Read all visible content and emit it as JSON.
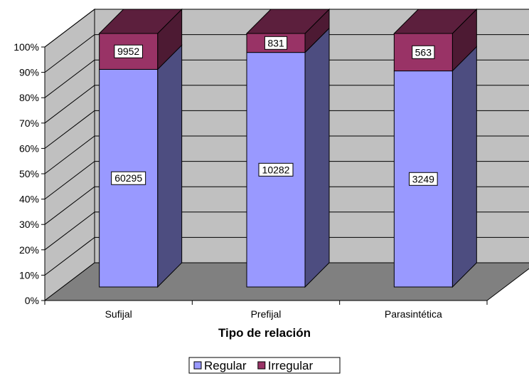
{
  "chart_data": {
    "type": "bar",
    "stacked": "percent",
    "three_d": true,
    "title": "",
    "xlabel": "Tipo de relación",
    "ylabel": "",
    "categories": [
      "Sufijal",
      "Prefijal",
      "Parasintética"
    ],
    "series": [
      {
        "name": "Regular",
        "values": [
          60295,
          10282,
          3249
        ],
        "color": "#9999ff"
      },
      {
        "name": "Irregular",
        "values": [
          9952,
          831,
          563
        ],
        "color": "#993366"
      }
    ],
    "y_ticks": [
      "0%",
      "10%",
      "20%",
      "30%",
      "40%",
      "50%",
      "60%",
      "70%",
      "80%",
      "90%",
      "100%"
    ],
    "ylim": [
      0,
      1
    ],
    "grid": true,
    "legend_position": "bottom"
  }
}
